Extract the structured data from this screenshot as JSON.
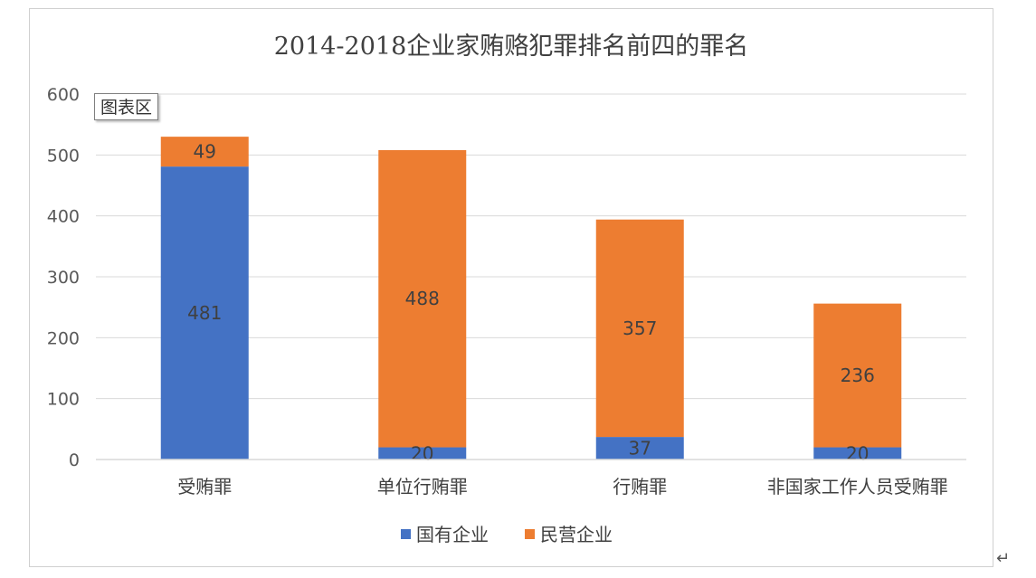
{
  "chart_data": {
    "type": "bar",
    "stacked": true,
    "title": "2014-2018企业家贿赂犯罪排名前四的罪名",
    "categories": [
      "受贿罪",
      "单位行贿罪",
      "行贿罪",
      "非国家工作人员受贿罪"
    ],
    "series": [
      {
        "name": "国有企业",
        "color": "#4472c4",
        "values": [
          481,
          20,
          37,
          20
        ]
      },
      {
        "name": "民营企业",
        "color": "#ed7d31",
        "values": [
          49,
          488,
          357,
          236
        ]
      }
    ],
    "ylim": [
      0,
      600
    ],
    "yticks": [
      0,
      100,
      200,
      300,
      400,
      500,
      600
    ],
    "grid": true,
    "legend": "bottom",
    "xlabel": "",
    "ylabel": ""
  },
  "ui": {
    "chart_area_label": "图表区",
    "return_mark": "↵"
  }
}
